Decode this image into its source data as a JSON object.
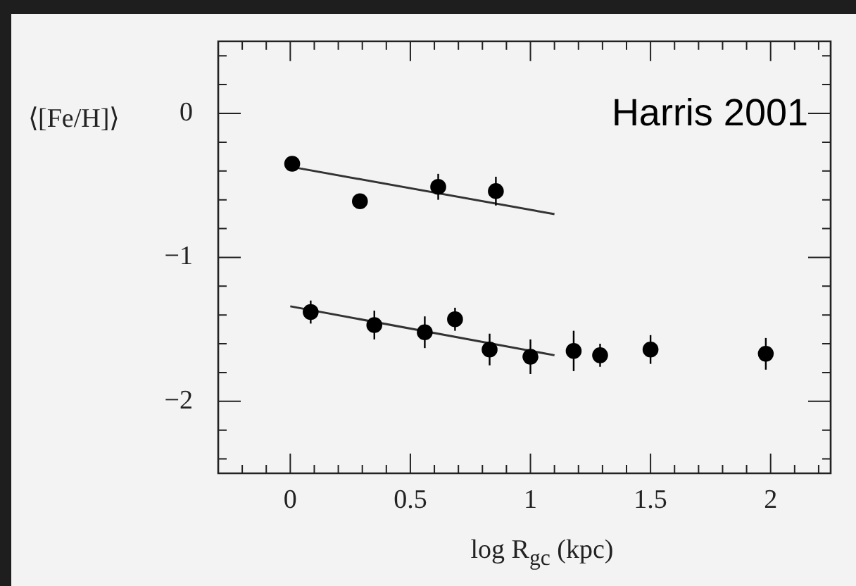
{
  "chart_data": {
    "type": "scatter",
    "xlabel": "log R$_{gc}$ (kpc)",
    "ylabel": "⟨[Fe/H]⟩",
    "annotations": [
      "Harris 2001"
    ],
    "xlim": [
      -0.3,
      2.25
    ],
    "ylim": [
      -2.5,
      0.5
    ],
    "xticks": [
      {
        "value": -0.2,
        "label": null
      },
      {
        "value": -0.1,
        "label": null
      },
      0,
      {
        "value": 0.1,
        "label": null
      },
      {
        "value": 0.2,
        "label": null
      },
      {
        "value": 0.3,
        "label": null
      },
      {
        "value": 0.4,
        "label": null
      },
      0.5,
      {
        "value": 0.6,
        "label": null
      },
      {
        "value": 0.7,
        "label": null
      },
      {
        "value": 0.8,
        "label": null
      },
      {
        "value": 0.9,
        "label": null
      },
      1,
      {
        "value": 1.1,
        "label": null
      },
      {
        "value": 1.2,
        "label": null
      },
      {
        "value": 1.3,
        "label": null
      },
      {
        "value": 1.4,
        "label": null
      },
      1.5,
      {
        "value": 1.6,
        "label": null
      },
      {
        "value": 1.7,
        "label": null
      },
      {
        "value": 1.8,
        "label": null
      },
      {
        "value": 1.9,
        "label": null
      },
      2,
      {
        "value": 2.1,
        "label": null
      },
      {
        "value": 2.2,
        "label": null
      }
    ],
    "yticks": [
      {
        "value": -2.4,
        "label": null
      },
      {
        "value": -2.2,
        "label": null
      },
      {
        "value": -2,
        "label": "−2"
      },
      {
        "value": -1.8,
        "label": null
      },
      {
        "value": -1.6,
        "label": null
      },
      {
        "value": -1.4,
        "label": null
      },
      {
        "value": -1.2,
        "label": null
      },
      {
        "value": -1,
        "label": "−1"
      },
      {
        "value": -0.8,
        "label": null
      },
      {
        "value": -0.6,
        "label": null
      },
      {
        "value": -0.4,
        "label": null
      },
      {
        "value": -0.2,
        "label": null
      },
      0,
      {
        "value": 0.2,
        "label": null
      },
      {
        "value": 0.4,
        "label": null
      }
    ],
    "grid": false,
    "legend": false,
    "series": [
      {
        "marker": "circle",
        "color": "#000000",
        "x": [
          0.008,
          0.29,
          0.616,
          0.856
        ],
        "values": [
          -0.35,
          -0.61,
          -0.51,
          -0.54
        ],
        "errors": [
          0.03,
          null,
          0.09,
          0.1
        ]
      },
      {
        "marker": "circle",
        "color": "#000000",
        "x": [
          0.085,
          0.35,
          0.56,
          0.686,
          0.83,
          1.0,
          1.18,
          1.29,
          1.5,
          1.98
        ],
        "values": [
          -1.38,
          -1.47,
          -1.52,
          -1.43,
          -1.64,
          -1.69,
          -1.65,
          -1.68,
          -1.64,
          -1.67
        ],
        "errors": [
          0.08,
          0.1,
          0.11,
          0.08,
          0.11,
          0.12,
          0.14,
          0.08,
          0.1,
          0.11
        ]
      },
      {
        "type": "line",
        "marker": "none",
        "color": "#333333",
        "x": [
          0,
          1.1
        ],
        "values": [
          -0.37,
          -0.7
        ]
      },
      {
        "type": "line",
        "marker": "none",
        "color": "#333333",
        "x": [
          0,
          1.1
        ],
        "values": [
          -1.34,
          -1.68
        ]
      }
    ]
  }
}
